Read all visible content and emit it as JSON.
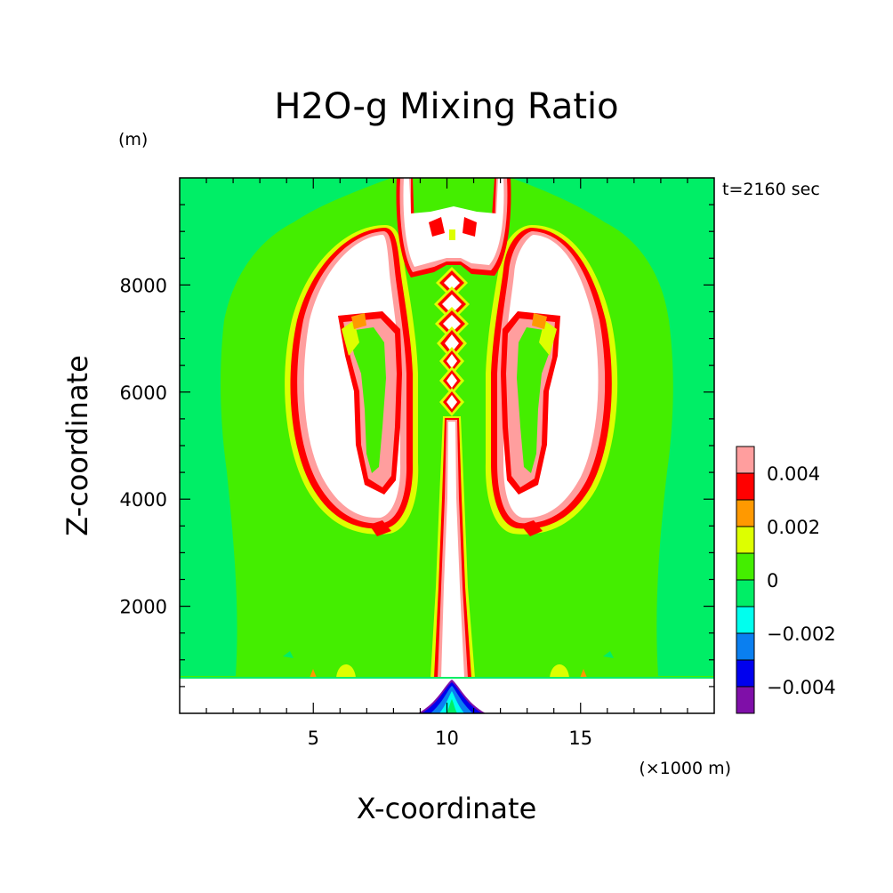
{
  "chart_data": {
    "type": "heatmap",
    "title": "H2O-g Mixing Ratio",
    "time_label": "t=2160 sec",
    "xlabel": "X-coordinate",
    "ylabel": "Z-coordinate",
    "x_unit": "(×1000 m)",
    "y_unit": "(m)",
    "xlim": [
      0,
      20
    ],
    "ylim": [
      0,
      10000
    ],
    "x_ticks": [
      {
        "value": 5,
        "label": "5"
      },
      {
        "value": 10,
        "label": "10"
      },
      {
        "value": 15,
        "label": "15"
      }
    ],
    "y_ticks": [
      {
        "value": 2000,
        "label": "2000"
      },
      {
        "value": 4000,
        "label": "4000"
      },
      {
        "value": 6000,
        "label": "6000"
      },
      {
        "value": 8000,
        "label": "8000"
      }
    ],
    "colorbar": {
      "levels": [
        -0.005,
        -0.004,
        -0.003,
        -0.002,
        -0.001,
        0,
        0.001,
        0.002,
        0.003,
        0.004,
        0.005
      ],
      "colors": [
        "#7f0fa8",
        "#0000ee",
        "#0a7ff0",
        "#00ffee",
        "#00ee66",
        "#44ee00",
        "#ddff00",
        "#ff9900",
        "#ff0000",
        "#ff9e9e"
      ],
      "labels": [
        {
          "value": -0.004,
          "label": "−0.004"
        },
        {
          "value": -0.002,
          "label": "−0.002"
        },
        {
          "value": 0,
          "label": "0"
        },
        {
          "value": 0.002,
          "label": "0.002"
        },
        {
          "value": 0.004,
          "label": "0.004"
        }
      ]
    },
    "regions": [
      {
        "name": "ground-layer",
        "value": "above-range",
        "x_range": [
          0,
          20
        ],
        "z_range": [
          0,
          700
        ]
      },
      {
        "name": "central-updraft",
        "value": 0.005,
        "x_center": 10.2,
        "z_range": [
          700,
          10000
        ]
      },
      {
        "name": "left-cloud-arm",
        "value": 0.005,
        "x_range": [
          5.5,
          8.5
        ],
        "z_range": [
          3300,
          9000
        ]
      },
      {
        "name": "right-cloud-arm",
        "value": 0.005,
        "x_range": [
          11.8,
          14.8
        ],
        "z_range": [
          3300,
          9000
        ]
      },
      {
        "name": "left-ambient",
        "value": 0.0005,
        "x_range": [
          0,
          5
        ],
        "z_range": [
          700,
          10000
        ]
      },
      {
        "name": "right-ambient",
        "value": 0.0005,
        "x_range": [
          15,
          20
        ],
        "z_range": [
          700,
          10000
        ]
      },
      {
        "name": "surface-minimum",
        "value": -0.005,
        "x_center": 10.1,
        "z_range": [
          0,
          650
        ]
      }
    ]
  }
}
